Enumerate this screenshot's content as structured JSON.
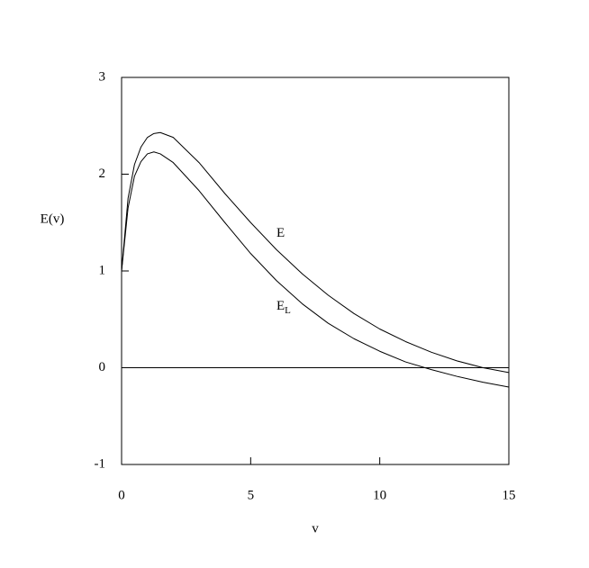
{
  "chart_data": {
    "type": "line",
    "x_label": "v",
    "y_label": "E(v)",
    "x": [
      0,
      0.25,
      0.5,
      0.75,
      1,
      1.25,
      1.5,
      2,
      3,
      4,
      5,
      6,
      7,
      8,
      9,
      10,
      11,
      12,
      13,
      14,
      15
    ],
    "series": [
      {
        "name": "E",
        "color": "#000000",
        "values": [
          1.0,
          1.75,
          2.1,
          2.28,
          2.38,
          2.42,
          2.43,
          2.38,
          2.12,
          1.8,
          1.5,
          1.22,
          0.97,
          0.75,
          0.56,
          0.4,
          0.27,
          0.16,
          0.07,
          0.0,
          -0.05
        ]
      },
      {
        "name": "E",
        "subscript": "L",
        "color": "#000000",
        "values": [
          1.0,
          1.65,
          1.98,
          2.13,
          2.21,
          2.23,
          2.21,
          2.12,
          1.83,
          1.5,
          1.18,
          0.9,
          0.66,
          0.46,
          0.3,
          0.17,
          0.06,
          -0.02,
          -0.09,
          -0.15,
          -0.2
        ]
      }
    ],
    "xlim": [
      0,
      15
    ],
    "xticks": [
      0,
      5,
      10,
      15
    ],
    "ylim": [
      -1,
      3
    ],
    "yticks": [
      -1,
      0,
      1,
      2,
      3
    ],
    "reference_line": 0,
    "grid": false
  }
}
